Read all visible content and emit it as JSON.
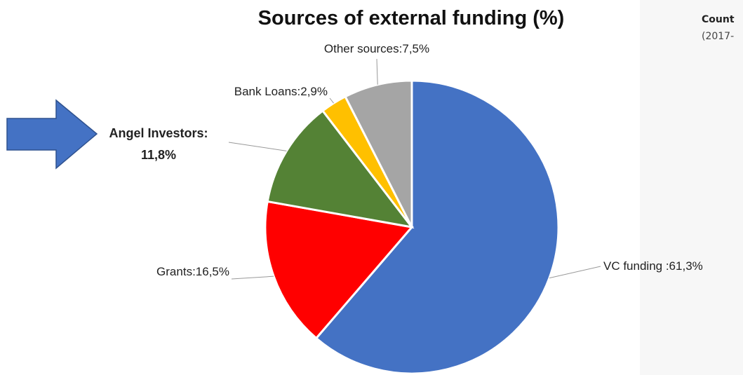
{
  "side_panel": {
    "title": "Count",
    "subtitle": "(2017-"
  },
  "chart_data": {
    "type": "pie",
    "title": "Sources of external funding (%)",
    "start_angle_deg": 0,
    "direction": "clockwise",
    "slices": [
      {
        "name": "VC funding",
        "label": "VC funding :61,3%",
        "value": 61.3,
        "color": "#4472C4"
      },
      {
        "name": "Grants",
        "label": "Grants:16,5%",
        "value": 16.5,
        "color": "#FF0000"
      },
      {
        "name": "Angel Investors",
        "label_lines": [
          "Angel Investors:",
          "11,8%"
        ],
        "value": 11.8,
        "color": "#548235",
        "highlighted": true
      },
      {
        "name": "Bank Loans",
        "label": "Bank Loans:2,9%",
        "value": 2.9,
        "color": "#FFC000"
      },
      {
        "name": "Other sources",
        "label": "Other sources:7,5%",
        "value": 7.5,
        "color": "#A5A5A5"
      }
    ],
    "pointer_arrow": {
      "target": "Angel Investors",
      "color": "#4472C4"
    }
  }
}
